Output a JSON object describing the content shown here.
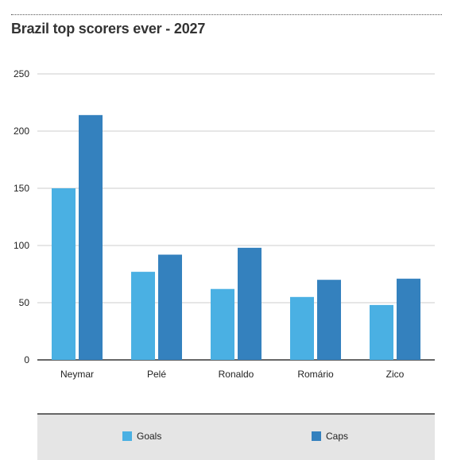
{
  "title": "Brazil top scorers ever - 2027",
  "colors": {
    "goals": "#4AB0E3",
    "caps": "#3481BE",
    "grid": "#cccccc",
    "axis": "#333333"
  },
  "chart_data": {
    "type": "bar",
    "title": "Brazil top scorers ever - 2027",
    "categories": [
      "Neymar",
      "Pelé",
      "Ronaldo",
      "Romário",
      "Zico"
    ],
    "series": [
      {
        "name": "Goals",
        "values": [
          150,
          77,
          62,
          55,
          48
        ]
      },
      {
        "name": "Caps",
        "values": [
          214,
          92,
          98,
          70,
          71
        ]
      }
    ],
    "ylim": [
      0,
      250
    ],
    "yticks": [
      0,
      50,
      100,
      150,
      200,
      250
    ],
    "grid": true,
    "legend": "bottom"
  }
}
